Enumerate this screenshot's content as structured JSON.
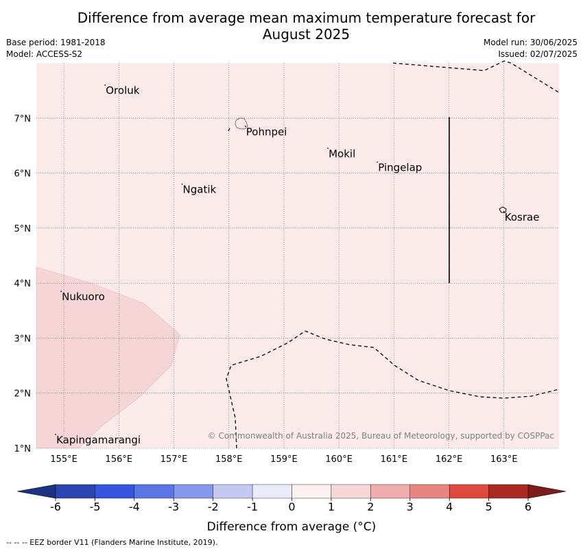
{
  "header": {
    "title_line1": "Difference from average mean maximum temperature forecast for",
    "title_line2": "August 2025",
    "base_period": "Base period: 1981-2018",
    "model": "Model: ACCESS-S2",
    "model_run": "Model run: 30/06/2025",
    "issued": "Issued: 02/07/2025"
  },
  "map": {
    "lon_labels": [
      "155°E",
      "156°E",
      "157°E",
      "158°E",
      "159°E",
      "160°E",
      "161°E",
      "162°E",
      "163°E"
    ],
    "lat_labels": [
      "7°N",
      "6°N",
      "5°N",
      "4°N",
      "3°N",
      "2°N",
      "1°N"
    ],
    "places": [
      {
        "name": "Oroluk",
        "lon": 155.75,
        "lat": 7.6
      },
      {
        "name": "Pohnpei",
        "lon": 158.3,
        "lat": 6.85
      },
      {
        "name": "Mokil",
        "lon": 159.8,
        "lat": 6.45
      },
      {
        "name": "Pingelap",
        "lon": 160.7,
        "lat": 6.2
      },
      {
        "name": "Ngatik",
        "lon": 157.15,
        "lat": 5.8
      },
      {
        "name": "Kosrae",
        "lon": 163.0,
        "lat": 5.3
      },
      {
        "name": "Nukuoro",
        "lon": 154.95,
        "lat": 3.85
      },
      {
        "name": "Kapingamarangi",
        "lon": 154.85,
        "lat": 1.25
      }
    ],
    "background_class_color": "#fbeaea",
    "anomaly_patch_color": "#f5d5d5",
    "copyright": "© Commonwealth of Australia 2025, Bureau of Meteorology, supported by COSPPac"
  },
  "colorbar": {
    "ticks": [
      "-6",
      "-5",
      "-4",
      "-3",
      "-2",
      "-1",
      "0",
      "1",
      "2",
      "3",
      "4",
      "5",
      "6"
    ],
    "colors": [
      "#2a45b2",
      "#3656e0",
      "#5b75e4",
      "#8698ea",
      "#c4c9f2",
      "#eaeafa",
      "#fdf0f0",
      "#f6d6d6",
      "#f0acac",
      "#e88580",
      "#de4a3e",
      "#ac2823"
    ],
    "under_color": "#1c3282",
    "over_color": "#7e1c18",
    "label": "Difference from average (°C)"
  },
  "footer": {
    "eez_note": "--  --  -- EEZ border V11 (Flanders Marine Institute, 2019)."
  }
}
